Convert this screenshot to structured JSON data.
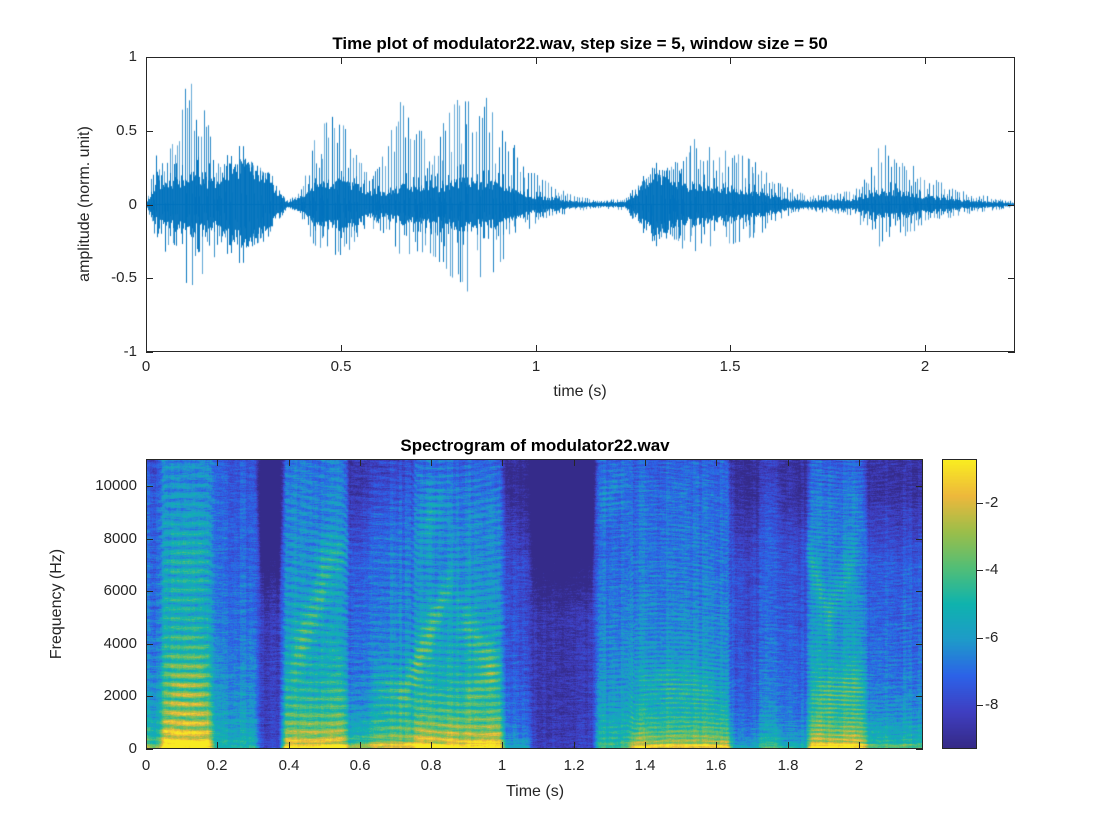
{
  "figure": {
    "background": "#ffffff",
    "axis_color": "#262626",
    "title_color": "#000000"
  },
  "chart_data": [
    {
      "type": "line",
      "id": "waveform",
      "title": "Time plot of modulator22.wav, step size = 5, window size = 50",
      "xlabel": "time (s)",
      "ylabel": "amplitude (norm. unit)",
      "xlim": [
        0,
        2.231
      ],
      "ylim": [
        -1,
        1
      ],
      "xticks": [
        0,
        0.5,
        1,
        1.5,
        2
      ],
      "xtick_labels": [
        "0",
        "0.5",
        "1",
        "1.5",
        "2"
      ],
      "yticks": [
        1,
        0.5,
        0,
        -0.5,
        -1
      ],
      "ytick_labels": [
        "1",
        "0.5",
        "0",
        "-0.5",
        "-1"
      ],
      "line_color": "#0072BD",
      "envelope_points": [
        [
          0.0,
          0.05,
          0.05,
          0.02
        ],
        [
          0.02,
          0.35,
          0.3,
          0.12
        ],
        [
          0.05,
          0.32,
          0.42,
          0.14
        ],
        [
          0.08,
          0.55,
          0.38,
          0.15
        ],
        [
          0.1,
          0.95,
          0.55,
          0.17
        ],
        [
          0.13,
          0.8,
          0.62,
          0.17
        ],
        [
          0.16,
          0.52,
          0.45,
          0.15
        ],
        [
          0.18,
          0.3,
          0.26,
          0.13
        ],
        [
          0.2,
          0.28,
          0.28,
          0.2
        ],
        [
          0.26,
          0.33,
          0.3,
          0.24
        ],
        [
          0.31,
          0.25,
          0.25,
          0.17
        ],
        [
          0.34,
          0.1,
          0.1,
          0.06
        ],
        [
          0.36,
          0.03,
          0.03,
          0.015
        ],
        [
          0.4,
          0.12,
          0.12,
          0.05
        ],
        [
          0.43,
          0.48,
          0.3,
          0.12
        ],
        [
          0.47,
          0.63,
          0.4,
          0.14
        ],
        [
          0.5,
          0.58,
          0.38,
          0.14
        ],
        [
          0.54,
          0.35,
          0.3,
          0.11
        ],
        [
          0.58,
          0.2,
          0.17,
          0.07
        ],
        [
          0.62,
          0.45,
          0.25,
          0.09
        ],
        [
          0.65,
          0.73,
          0.35,
          0.11
        ],
        [
          0.69,
          0.58,
          0.35,
          0.11
        ],
        [
          0.72,
          0.45,
          0.33,
          0.1
        ],
        [
          0.76,
          0.55,
          0.45,
          0.12
        ],
        [
          0.8,
          0.75,
          0.55,
          0.14
        ],
        [
          0.84,
          0.95,
          0.65,
          0.15
        ],
        [
          0.88,
          0.7,
          0.5,
          0.13
        ],
        [
          0.92,
          0.55,
          0.35,
          0.11
        ],
        [
          0.96,
          0.38,
          0.22,
          0.08
        ],
        [
          1.0,
          0.22,
          0.13,
          0.05
        ],
        [
          1.05,
          0.12,
          0.08,
          0.035
        ],
        [
          1.1,
          0.06,
          0.05,
          0.02
        ],
        [
          1.16,
          0.03,
          0.03,
          0.012
        ],
        [
          1.23,
          0.04,
          0.04,
          0.015
        ],
        [
          1.26,
          0.14,
          0.14,
          0.08
        ],
        [
          1.29,
          0.22,
          0.22,
          0.15
        ],
        [
          1.33,
          0.25,
          0.25,
          0.16
        ],
        [
          1.36,
          0.3,
          0.28,
          0.12
        ],
        [
          1.4,
          0.46,
          0.35,
          0.12
        ],
        [
          1.45,
          0.42,
          0.3,
          0.1
        ],
        [
          1.5,
          0.38,
          0.28,
          0.09
        ],
        [
          1.55,
          0.32,
          0.24,
          0.08
        ],
        [
          1.6,
          0.24,
          0.17,
          0.06
        ],
        [
          1.65,
          0.12,
          0.08,
          0.03
        ],
        [
          1.7,
          0.06,
          0.05,
          0.02
        ],
        [
          1.76,
          0.07,
          0.06,
          0.025
        ],
        [
          1.81,
          0.1,
          0.08,
          0.03
        ],
        [
          1.85,
          0.18,
          0.22,
          0.05
        ],
        [
          1.88,
          0.43,
          0.3,
          0.08
        ],
        [
          1.92,
          0.38,
          0.26,
          0.08
        ],
        [
          1.96,
          0.3,
          0.2,
          0.07
        ],
        [
          2.0,
          0.23,
          0.15,
          0.05
        ],
        [
          2.05,
          0.15,
          0.1,
          0.04
        ],
        [
          2.1,
          0.09,
          0.07,
          0.025
        ],
        [
          2.16,
          0.06,
          0.05,
          0.018
        ],
        [
          2.23,
          0.02,
          0.02,
          0.008
        ]
      ]
    },
    {
      "type": "heatmap",
      "id": "spectrogram",
      "title": "Spectrogram of modulator22.wav",
      "xlabel": "Time (s)",
      "ylabel": "Frequency (Hz)",
      "xlim": [
        0,
        2.18
      ],
      "ylim": [
        0,
        11025
      ],
      "xticks": [
        0,
        0.2,
        0.4,
        0.6,
        0.8,
        1,
        1.2,
        1.4,
        1.6,
        1.8,
        2
      ],
      "xtick_labels": [
        "0",
        "0.2",
        "0.4",
        "0.6",
        "0.8",
        "1",
        "1.2",
        "1.4",
        "1.6",
        "1.8",
        "2"
      ],
      "yticks": [
        0,
        2000,
        4000,
        6000,
        8000,
        10000
      ],
      "ytick_labels": [
        "0",
        "2000",
        "4000",
        "6000",
        "8000",
        "10000"
      ],
      "colorbar": {
        "ticks": [
          -2,
          -4,
          -6,
          -8
        ],
        "tick_labels": [
          "-2",
          "-4",
          "-6",
          "-8"
        ],
        "clim": [
          -9.3,
          -0.7
        ]
      },
      "colormap": {
        "name": "parula",
        "stops": [
          "#352A87",
          "#3F3FC2",
          "#2C63E8",
          "#1E9BC9",
          "#0FB3AE",
          "#52BE77",
          "#9BBE4A",
          "#EDB83C",
          "#F9EC21"
        ]
      },
      "segments": [
        [
          0.0,
          0.04,
          0.55,
          0.55,
          0.8,
          330,
          9000,
          0.6
        ],
        [
          0.04,
          0.18,
          0.95,
          0.95,
          1.1,
          340,
          11025,
          0.0
        ],
        [
          0.18,
          0.31,
          0.55,
          0.2,
          0.4,
          330,
          10000,
          0.3
        ],
        [
          0.31,
          0.38,
          0.1,
          0.06,
          0.3,
          330,
          5000,
          1.8
        ],
        [
          0.38,
          0.56,
          0.8,
          0.85,
          1.1,
          320,
          10000,
          0.4
        ],
        [
          0.56,
          0.63,
          0.45,
          0.7,
          0.8,
          310,
          7000,
          1.0
        ],
        [
          0.63,
          0.75,
          0.65,
          0.85,
          1.0,
          310,
          8000,
          0.8
        ],
        [
          0.75,
          1.0,
          0.8,
          0.95,
          1.1,
          300,
          9000,
          0.6
        ],
        [
          1.0,
          1.08,
          0.3,
          0.35,
          0.6,
          300,
          7000,
          1.2
        ],
        [
          1.08,
          1.26,
          0.07,
          0.05,
          0.25,
          300,
          5000,
          1.8
        ],
        [
          1.26,
          1.36,
          0.6,
          0.3,
          0.7,
          200,
          11025,
          0.2
        ],
        [
          1.36,
          1.64,
          0.65,
          0.85,
          0.9,
          170,
          10000,
          0.8
        ],
        [
          1.64,
          1.72,
          0.3,
          0.35,
          0.5,
          180,
          7000,
          1.0
        ],
        [
          1.72,
          1.78,
          0.45,
          0.45,
          0.6,
          180,
          8000,
          0.8
        ],
        [
          1.78,
          1.86,
          0.35,
          0.4,
          0.6,
          180,
          7000,
          1.0
        ],
        [
          1.86,
          2.02,
          0.75,
          0.9,
          1.0,
          180,
          9000,
          0.6
        ],
        [
          2.02,
          2.18,
          0.45,
          0.55,
          0.7,
          180,
          7000,
          1.2
        ]
      ],
      "formant_tracks": [
        [
          0.04,
          0.18,
          2200,
          2600,
          1600,
          1.6
        ],
        [
          0.04,
          0.18,
          6500,
          7500,
          1800,
          1.0
        ],
        [
          0.4,
          0.52,
          3000,
          6800,
          1000,
          1.9
        ],
        [
          0.46,
          0.58,
          7000,
          7600,
          900,
          1.2
        ],
        [
          0.63,
          0.74,
          2400,
          2100,
          800,
          1.2
        ],
        [
          0.7,
          0.87,
          1400,
          6800,
          800,
          2.1
        ],
        [
          0.76,
          0.85,
          8200,
          9800,
          1000,
          1.1
        ],
        [
          0.86,
          1.0,
          5400,
          2700,
          800,
          1.6
        ],
        [
          0.88,
          1.0,
          1800,
          3000,
          600,
          1.2
        ],
        [
          1.26,
          1.36,
          9300,
          10300,
          900,
          1.0
        ],
        [
          1.38,
          1.62,
          2600,
          2200,
          700,
          1.0
        ],
        [
          1.84,
          1.93,
          8200,
          4600,
          800,
          1.5
        ],
        [
          1.9,
          2.0,
          4600,
          7600,
          800,
          1.4
        ],
        [
          1.86,
          2.04,
          1900,
          2500,
          700,
          1.3
        ]
      ]
    }
  ]
}
